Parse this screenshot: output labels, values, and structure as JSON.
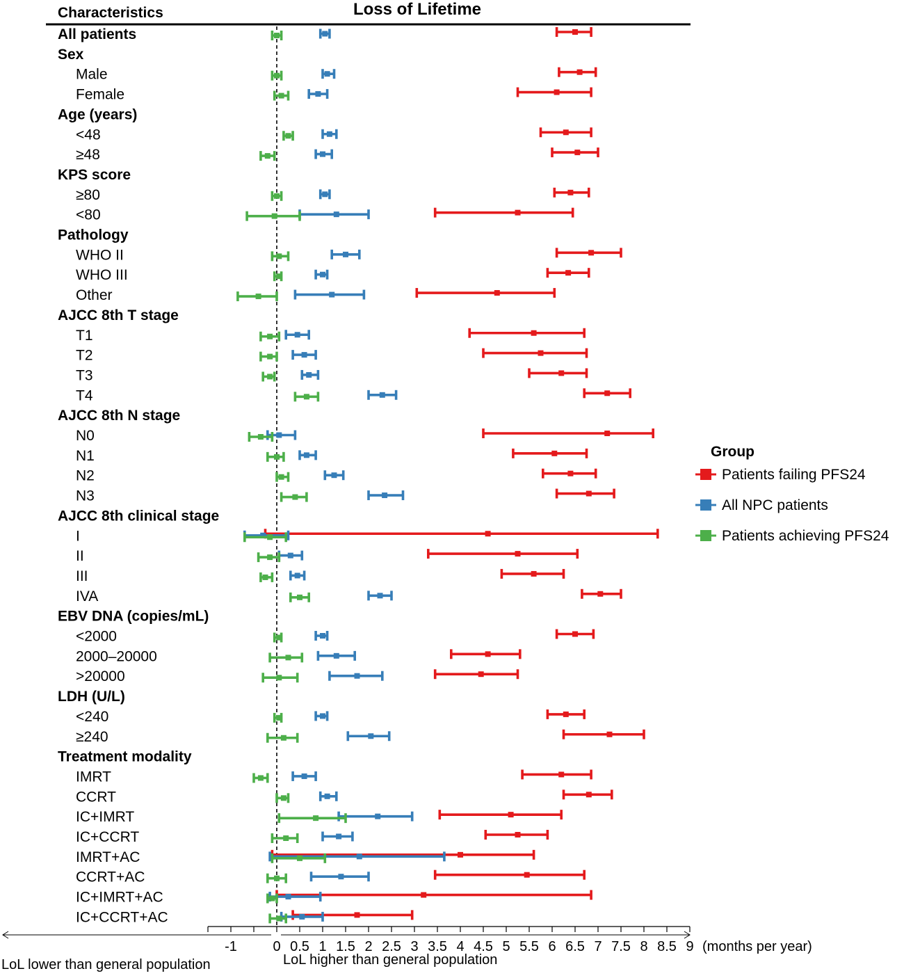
{
  "chart_data": {
    "type": "forest",
    "title": "Loss of Lifetime",
    "column_header": "Characteristics",
    "x_unit": "(months per year)",
    "x_ticks": [
      "-1",
      "0",
      "0.5",
      "1",
      "1.5",
      "2",
      "2.5",
      "3",
      "3.5",
      "4",
      "4.5",
      "5",
      "5.5",
      "6",
      "6.5",
      "7",
      "7.5",
      "8",
      "8.5",
      "9"
    ],
    "xlim": [
      -1.5,
      9
    ],
    "reference_line": 0,
    "arrow_left_label": "LoL lower than general population",
    "arrow_right_label": "LoL higher than general population",
    "legend": {
      "title": "Group",
      "position": "right",
      "items": [
        {
          "name": "Patients failing PFS24",
          "color": "#e41a1c"
        },
        {
          "name": "All NPC patients",
          "color": "#377eb8"
        },
        {
          "name": "Patients achieving PFS24",
          "color": "#4daf4a"
        }
      ]
    },
    "colors": {
      "failing": "#e41a1c",
      "all": "#377eb8",
      "achieving": "#4daf4a"
    },
    "rows": [
      {
        "label": "All patients",
        "header": true,
        "failing": [
          6.1,
          6.5,
          6.85
        ],
        "all": [
          0.95,
          1.05,
          1.15
        ],
        "achieving": [
          -0.1,
          0.0,
          0.1
        ]
      },
      {
        "label": "Sex",
        "header": true
      },
      {
        "label": "Male",
        "failing": [
          6.15,
          6.6,
          6.95
        ],
        "all": [
          1.0,
          1.1,
          1.25
        ],
        "achieving": [
          -0.1,
          0.0,
          0.1
        ]
      },
      {
        "label": "Female",
        "failing": [
          5.25,
          6.1,
          6.85
        ],
        "all": [
          0.7,
          0.9,
          1.1
        ],
        "achieving": [
          -0.05,
          0.1,
          0.25
        ]
      },
      {
        "label": "Age (years)",
        "header": true
      },
      {
        "label": "<48",
        "failing": [
          5.75,
          6.3,
          6.85
        ],
        "all": [
          1.0,
          1.15,
          1.3
        ],
        "achieving": [
          0.15,
          0.25,
          0.35
        ]
      },
      {
        "label": "≥48",
        "failing": [
          6.0,
          6.55,
          7.0
        ],
        "all": [
          0.85,
          1.0,
          1.2
        ],
        "achieving": [
          -0.35,
          -0.2,
          -0.05
        ]
      },
      {
        "label": "KPS score",
        "header": true
      },
      {
        "label": "≥80",
        "failing": [
          6.05,
          6.4,
          6.8
        ],
        "all": [
          0.95,
          1.05,
          1.15
        ],
        "achieving": [
          -0.1,
          0.0,
          0.1
        ]
      },
      {
        "label": "<80",
        "failing": [
          3.45,
          5.25,
          6.45
        ],
        "all": [
          0.5,
          1.3,
          2.0
        ],
        "achieving": [
          -0.65,
          -0.05,
          0.5
        ]
      },
      {
        "label": "Pathology",
        "header": true
      },
      {
        "label": "WHO II",
        "failing": [
          6.1,
          6.85,
          7.5
        ],
        "all": [
          1.2,
          1.5,
          1.8
        ],
        "achieving": [
          -0.1,
          0.05,
          0.25
        ]
      },
      {
        "label": "WHO III",
        "failing": [
          5.9,
          6.35,
          6.8
        ],
        "all": [
          0.85,
          1.0,
          1.1
        ],
        "achieving": [
          -0.05,
          0.05,
          0.1
        ]
      },
      {
        "label": "Other",
        "failing": [
          3.05,
          4.8,
          6.05
        ],
        "all": [
          0.4,
          1.2,
          1.9
        ],
        "achieving": [
          -0.85,
          -0.4,
          0.0
        ]
      },
      {
        "label": "AJCC 8th T stage",
        "header": true
      },
      {
        "label": "T1",
        "failing": [
          4.2,
          5.6,
          6.7
        ],
        "all": [
          0.2,
          0.45,
          0.7
        ],
        "achieving": [
          -0.35,
          -0.15,
          0.05
        ]
      },
      {
        "label": "T2",
        "failing": [
          4.5,
          5.75,
          6.75
        ],
        "all": [
          0.35,
          0.6,
          0.85
        ],
        "achieving": [
          -0.35,
          -0.15,
          0.0
        ]
      },
      {
        "label": "T3",
        "failing": [
          5.5,
          6.2,
          6.75
        ],
        "all": [
          0.55,
          0.7,
          0.9
        ],
        "achieving": [
          -0.3,
          -0.15,
          -0.05
        ]
      },
      {
        "label": "T4",
        "failing": [
          6.7,
          7.2,
          7.7
        ],
        "all": [
          2.0,
          2.3,
          2.6
        ],
        "achieving": [
          0.4,
          0.65,
          0.9
        ]
      },
      {
        "label": "AJCC 8th N stage",
        "header": true
      },
      {
        "label": "N0",
        "failing": [
          4.5,
          7.2,
          8.2
        ],
        "all": [
          -0.2,
          0.05,
          0.4
        ],
        "achieving": [
          -0.6,
          -0.35,
          -0.1
        ]
      },
      {
        "label": "N1",
        "failing": [
          5.15,
          6.05,
          6.75
        ],
        "all": [
          0.5,
          0.65,
          0.85
        ],
        "achieving": [
          -0.2,
          0.0,
          0.15
        ]
      },
      {
        "label": "N2",
        "failing": [
          5.8,
          6.4,
          6.95
        ],
        "all": [
          1.05,
          1.25,
          1.45
        ],
        "achieving": [
          0.0,
          0.1,
          0.25
        ]
      },
      {
        "label": "N3",
        "failing": [
          6.1,
          6.8,
          7.35
        ],
        "all": [
          2.0,
          2.35,
          2.75
        ],
        "achieving": [
          0.1,
          0.4,
          0.65
        ]
      },
      {
        "label": "AJCC 8th clinical stage",
        "header": true
      },
      {
        "label": "I",
        "failing": [
          -0.25,
          4.6,
          8.3
        ],
        "all": [
          -0.7,
          -0.3,
          0.25
        ],
        "achieving": [
          -0.7,
          -0.15,
          0.2
        ]
      },
      {
        "label": "II",
        "failing": [
          3.3,
          5.25,
          6.55
        ],
        "all": [
          0.05,
          0.3,
          0.55
        ],
        "achieving": [
          -0.4,
          -0.15,
          0.05
        ]
      },
      {
        "label": "III",
        "failing": [
          4.9,
          5.6,
          6.25
        ],
        "all": [
          0.3,
          0.45,
          0.6
        ],
        "achieving": [
          -0.35,
          -0.25,
          -0.1
        ]
      },
      {
        "label": "IVA",
        "failing": [
          6.65,
          7.05,
          7.5
        ],
        "all": [
          2.0,
          2.25,
          2.5
        ],
        "achieving": [
          0.3,
          0.5,
          0.7
        ]
      },
      {
        "label": "EBV DNA (copies/mL)",
        "header": true
      },
      {
        "label": "<2000",
        "failing": [
          6.1,
          6.5,
          6.9
        ],
        "all": [
          0.85,
          1.0,
          1.1
        ],
        "achieving": [
          -0.05,
          0.05,
          0.1
        ]
      },
      {
        "label": "2000–20000",
        "failing": [
          3.8,
          4.6,
          5.3
        ],
        "all": [
          0.9,
          1.3,
          1.7
        ],
        "achieving": [
          -0.15,
          0.25,
          0.55
        ]
      },
      {
        "label": ">20000",
        "failing": [
          3.45,
          4.45,
          5.25
        ],
        "all": [
          1.15,
          1.75,
          2.3
        ],
        "achieving": [
          -0.3,
          0.05,
          0.45
        ]
      },
      {
        "label": "LDH (U/L)",
        "header": true
      },
      {
        "label": "<240",
        "failing": [
          5.9,
          6.3,
          6.7
        ],
        "all": [
          0.85,
          1.0,
          1.1
        ],
        "achieving": [
          -0.05,
          0.05,
          0.1
        ]
      },
      {
        "label": "≥240",
        "failing": [
          6.25,
          7.25,
          8.0
        ],
        "all": [
          1.55,
          2.05,
          2.45
        ],
        "achieving": [
          -0.2,
          0.15,
          0.45
        ]
      },
      {
        "label": "Treatment modality",
        "header": true
      },
      {
        "label": "IMRT",
        "failing": [
          5.35,
          6.2,
          6.85
        ],
        "all": [
          0.35,
          0.6,
          0.85
        ],
        "achieving": [
          -0.5,
          -0.35,
          -0.2
        ]
      },
      {
        "label": "CCRT",
        "failing": [
          6.25,
          6.8,
          7.3
        ],
        "all": [
          0.95,
          1.1,
          1.3
        ],
        "achieving": [
          0.0,
          0.15,
          0.25
        ]
      },
      {
        "label": "IC+IMRT",
        "failing": [
          3.55,
          5.1,
          6.2
        ],
        "all": [
          1.35,
          2.2,
          2.95
        ],
        "achieving": [
          0.05,
          0.85,
          1.5
        ]
      },
      {
        "label": "IC+CCRT",
        "failing": [
          4.55,
          5.25,
          5.9
        ],
        "all": [
          1.0,
          1.35,
          1.65
        ],
        "achieving": [
          -0.1,
          0.2,
          0.45
        ]
      },
      {
        "label": "IMRT+AC",
        "failing": [
          -0.1,
          4.0,
          5.6
        ],
        "all": [
          -0.15,
          1.8,
          3.65
        ],
        "achieving": [
          -0.1,
          0.5,
          1.05
        ]
      },
      {
        "label": "CCRT+AC",
        "failing": [
          3.45,
          5.45,
          6.7
        ],
        "all": [
          0.75,
          1.4,
          2.0
        ],
        "achieving": [
          -0.2,
          0.0,
          0.2
        ]
      },
      {
        "label": "IC+IMRT+AC",
        "failing": [
          0.0,
          3.2,
          6.85
        ],
        "all": [
          -0.15,
          0.25,
          0.95
        ],
        "achieving": [
          -0.2,
          -0.1,
          0.0
        ]
      },
      {
        "label": "IC+CCRT+AC",
        "failing": [
          0.35,
          1.75,
          2.95
        ],
        "all": [
          0.1,
          0.55,
          1.0
        ],
        "achieving": [
          -0.15,
          0.05,
          0.2
        ]
      }
    ]
  }
}
